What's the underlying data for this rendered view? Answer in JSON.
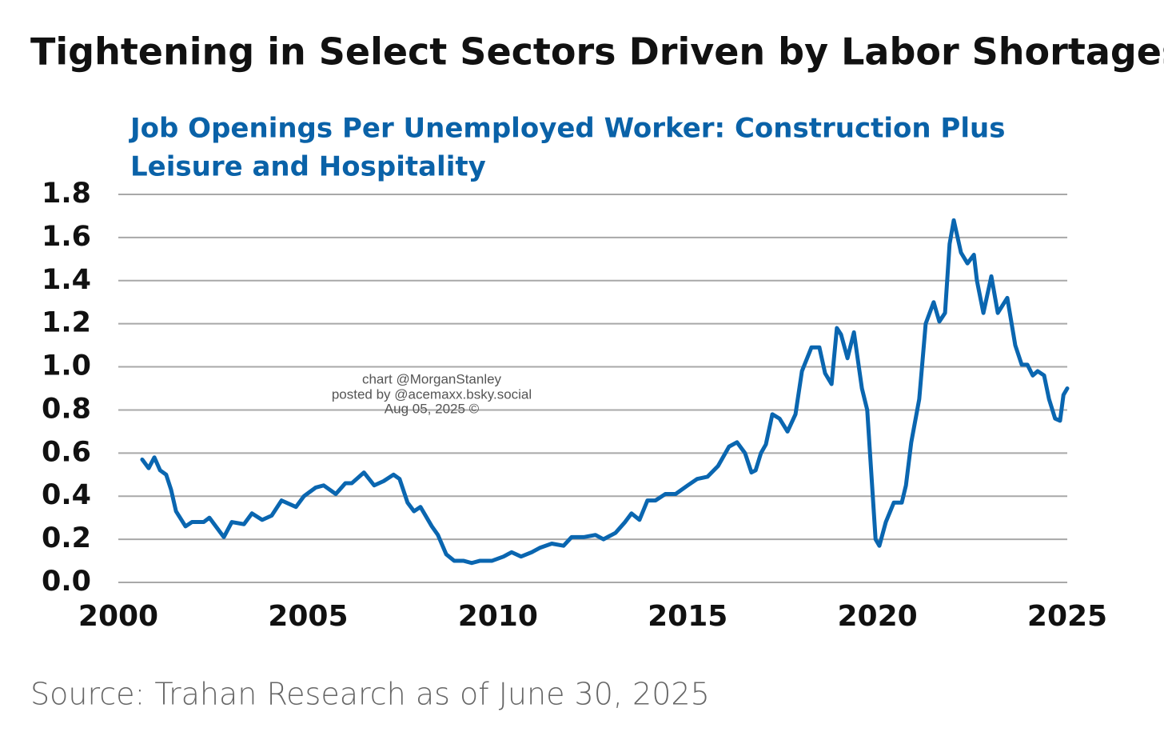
{
  "chart_data": {
    "type": "line",
    "title": "Tightening in Select Sectors Driven by Labor Shortages",
    "subtitle": [
      "Job Openings Per Unemployed Worker: Construction Plus",
      "Leisure and Hospitality"
    ],
    "annotation": [
      "chart @MorganStanley",
      "posted by @acemaxx.bsky.social",
      "Aug 05, 2025 ©"
    ],
    "source": "Source: Trahan Research as of June 30, 2025",
    "x": [
      2000.63,
      2000.8,
      2000.95,
      2001.1,
      2001.26,
      2001.39,
      2001.52,
      2001.77,
      2001.94,
      2002.25,
      2002.4,
      2002.57,
      2002.78,
      2002.99,
      2003.31,
      2003.52,
      2003.79,
      2004.04,
      2004.3,
      2004.68,
      2004.89,
      2005.2,
      2005.41,
      2005.73,
      2005.98,
      2006.15,
      2006.47,
      2006.74,
      2006.99,
      2007.25,
      2007.41,
      2007.62,
      2007.79,
      2007.96,
      2008.26,
      2008.42,
      2008.64,
      2008.85,
      2009.1,
      2009.31,
      2009.52,
      2009.84,
      2010.15,
      2010.36,
      2010.61,
      2010.89,
      2011.1,
      2011.42,
      2011.73,
      2011.94,
      2012.26,
      2012.57,
      2012.78,
      2013.1,
      2013.35,
      2013.52,
      2013.73,
      2013.94,
      2014.15,
      2014.41,
      2014.68,
      2015.0,
      2015.25,
      2015.52,
      2015.8,
      2016.09,
      2016.3,
      2016.51,
      2016.68,
      2016.79,
      2016.93,
      2017.06,
      2017.23,
      2017.42,
      2017.63,
      2017.84,
      2018.01,
      2018.26,
      2018.47,
      2018.62,
      2018.79,
      2018.93,
      2019.04,
      2019.21,
      2019.38,
      2019.59,
      2019.73,
      2019.84,
      2019.95,
      2020.05,
      2020.22,
      2020.43,
      2020.64,
      2020.75,
      2020.89,
      2021.1,
      2021.27,
      2021.48,
      2021.63,
      2021.78,
      2021.9,
      2022.01,
      2022.2,
      2022.37,
      2022.54,
      2022.62,
      2022.79,
      2023.0,
      2023.17,
      2023.42,
      2023.63,
      2023.8,
      2023.95,
      2024.09,
      2024.22,
      2024.39,
      2024.52,
      2024.68,
      2024.81,
      2024.9,
      2025.0
    ],
    "series": [
      {
        "name": "Job openings per unemployed worker",
        "color": "#0a66b0",
        "values": [
          0.57,
          0.53,
          0.58,
          0.52,
          0.5,
          0.43,
          0.33,
          0.26,
          0.28,
          0.28,
          0.3,
          0.26,
          0.21,
          0.28,
          0.27,
          0.32,
          0.29,
          0.31,
          0.38,
          0.35,
          0.4,
          0.44,
          0.45,
          0.41,
          0.46,
          0.46,
          0.51,
          0.45,
          0.47,
          0.5,
          0.48,
          0.37,
          0.33,
          0.35,
          0.26,
          0.22,
          0.13,
          0.1,
          0.1,
          0.09,
          0.1,
          0.1,
          0.12,
          0.14,
          0.12,
          0.14,
          0.16,
          0.18,
          0.17,
          0.21,
          0.21,
          0.22,
          0.2,
          0.23,
          0.28,
          0.32,
          0.29,
          0.38,
          0.38,
          0.41,
          0.41,
          0.45,
          0.48,
          0.49,
          0.54,
          0.63,
          0.65,
          0.6,
          0.51,
          0.52,
          0.6,
          0.64,
          0.78,
          0.76,
          0.7,
          0.78,
          0.98,
          1.09,
          1.09,
          0.97,
          0.92,
          1.18,
          1.15,
          1.04,
          1.16,
          0.9,
          0.8,
          0.5,
          0.2,
          0.17,
          0.28,
          0.37,
          0.37,
          0.45,
          0.65,
          0.85,
          1.2,
          1.3,
          1.21,
          1.25,
          1.57,
          1.68,
          1.53,
          1.48,
          1.52,
          1.4,
          1.25,
          1.42,
          1.25,
          1.32,
          1.1,
          1.01,
          1.01,
          0.96,
          0.98,
          0.96,
          0.85,
          0.76,
          0.75,
          0.87,
          0.9
        ]
      }
    ],
    "xlim": [
      2000,
      2025
    ],
    "xticks": [
      2000,
      2005,
      2010,
      2015,
      2020,
      2025
    ],
    "ylim": [
      0,
      1.8
    ],
    "yticks": [
      {
        "value": 0,
        "label": "0.0"
      },
      0.2,
      0.4,
      0.6,
      0.8,
      {
        "value": 1,
        "label": "1.0"
      },
      1.2,
      1.4,
      1.6,
      1.8
    ],
    "grid": true
  }
}
